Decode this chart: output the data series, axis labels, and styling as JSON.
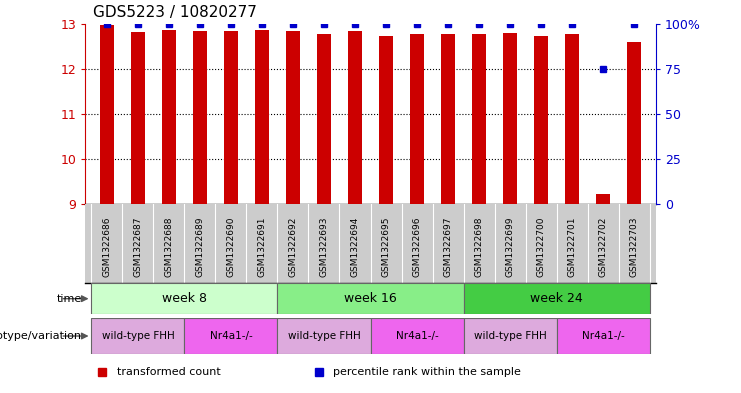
{
  "title": "GDS5223 / 10820277",
  "samples": [
    "GSM1322686",
    "GSM1322687",
    "GSM1322688",
    "GSM1322689",
    "GSM1322690",
    "GSM1322691",
    "GSM1322692",
    "GSM1322693",
    "GSM1322694",
    "GSM1322695",
    "GSM1322696",
    "GSM1322697",
    "GSM1322698",
    "GSM1322699",
    "GSM1322700",
    "GSM1322701",
    "GSM1322702",
    "GSM1322703"
  ],
  "transformed_count": [
    12.97,
    12.82,
    12.85,
    12.83,
    12.84,
    12.85,
    12.83,
    12.78,
    12.84,
    12.72,
    12.76,
    12.78,
    12.78,
    12.8,
    12.72,
    12.76,
    9.22,
    12.6
  ],
  "percentile_rank": [
    100,
    100,
    100,
    100,
    100,
    100,
    100,
    100,
    100,
    100,
    100,
    100,
    100,
    100,
    100,
    100,
    75,
    100
  ],
  "ylim_left": [
    9,
    13
  ],
  "ylim_right": [
    0,
    100
  ],
  "yticks_left": [
    9,
    10,
    11,
    12,
    13
  ],
  "yticks_right": [
    0,
    25,
    50,
    75,
    100
  ],
  "ytick_labels_right": [
    "0",
    "25",
    "50",
    "75",
    "100%"
  ],
  "bar_color": "#cc0000",
  "dot_color": "#0000cc",
  "bar_width": 0.45,
  "time_groups": [
    {
      "label": "week 8",
      "start": 0,
      "end": 5,
      "color": "#ccffcc"
    },
    {
      "label": "week 16",
      "start": 6,
      "end": 11,
      "color": "#88ee88"
    },
    {
      "label": "week 24",
      "start": 12,
      "end": 17,
      "color": "#44cc44"
    }
  ],
  "genotype_groups": [
    {
      "label": "wild-type FHH",
      "start": 0,
      "end": 2,
      "color": "#ddaadd"
    },
    {
      "label": "Nr4a1-/-",
      "start": 3,
      "end": 5,
      "color": "#ee66ee"
    },
    {
      "label": "wild-type FHH",
      "start": 6,
      "end": 8,
      "color": "#ddaadd"
    },
    {
      "label": "Nr4a1-/-",
      "start": 9,
      "end": 11,
      "color": "#ee66ee"
    },
    {
      "label": "wild-type FHH",
      "start": 12,
      "end": 14,
      "color": "#ddaadd"
    },
    {
      "label": "Nr4a1-/-",
      "start": 15,
      "end": 17,
      "color": "#ee66ee"
    }
  ],
  "legend_items": [
    {
      "label": "transformed count",
      "color": "#cc0000"
    },
    {
      "label": "percentile rank within the sample",
      "color": "#0000cc"
    }
  ],
  "sample_label_bg": "#cccccc",
  "background_color": "#ffffff",
  "time_label": "time",
  "genotype_label": "genotype/variation"
}
